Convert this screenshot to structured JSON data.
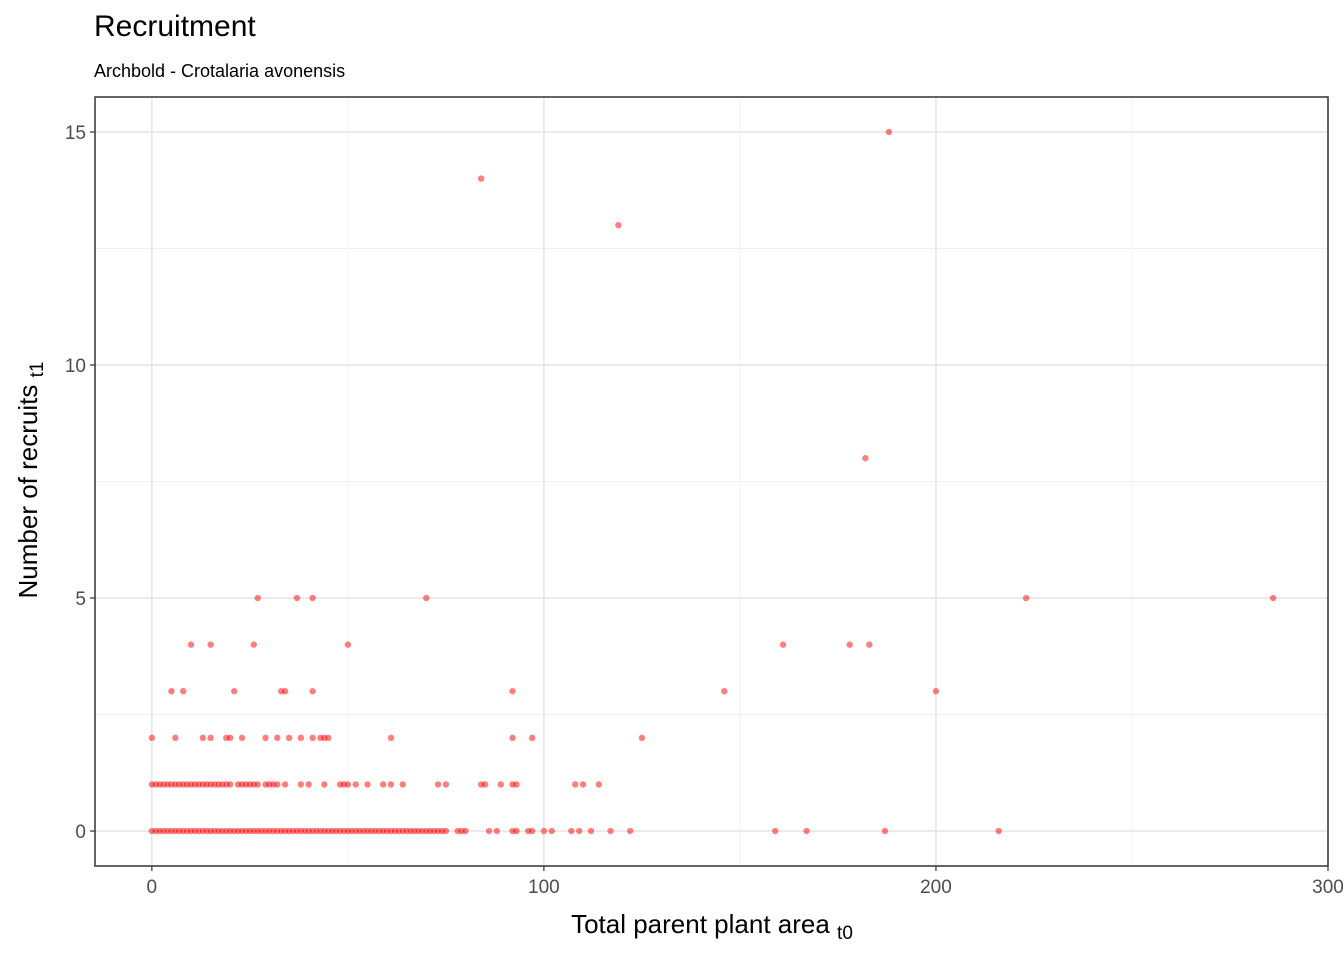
{
  "chart_data": {
    "type": "scatter",
    "title": "Recruitment",
    "subtitle": "Archbold - Crotalaria avonensis",
    "xlabel": "Total parent plant area",
    "xlabel_sub": "t0",
    "ylabel": "Number of recruits",
    "ylabel_sub": "t1",
    "xlim": [
      -14.5,
      300
    ],
    "ylim": [
      -0.75,
      15.75
    ],
    "x_ticks": [
      0,
      100,
      200,
      300
    ],
    "y_ticks": [
      0,
      5,
      10,
      15
    ],
    "x_tick_labels": [
      "0",
      "100",
      "200",
      "300"
    ],
    "y_tick_labels": [
      "0",
      "5",
      "10",
      "15"
    ],
    "grid": true,
    "point_color": "#ff0000",
    "points": [
      [
        0,
        0
      ],
      [
        1,
        0
      ],
      [
        2,
        0
      ],
      [
        3,
        0
      ],
      [
        4,
        0
      ],
      [
        5,
        0
      ],
      [
        6,
        0
      ],
      [
        7,
        0
      ],
      [
        8,
        0
      ],
      [
        9,
        0
      ],
      [
        10,
        0
      ],
      [
        11,
        0
      ],
      [
        12,
        0
      ],
      [
        13,
        0
      ],
      [
        14,
        0
      ],
      [
        15,
        0
      ],
      [
        16,
        0
      ],
      [
        17,
        0
      ],
      [
        18,
        0
      ],
      [
        19,
        0
      ],
      [
        20,
        0
      ],
      [
        21,
        0
      ],
      [
        22,
        0
      ],
      [
        23,
        0
      ],
      [
        24,
        0
      ],
      [
        25,
        0
      ],
      [
        26,
        0
      ],
      [
        27,
        0
      ],
      [
        28,
        0
      ],
      [
        29,
        0
      ],
      [
        30,
        0
      ],
      [
        31,
        0
      ],
      [
        32,
        0
      ],
      [
        33,
        0
      ],
      [
        34,
        0
      ],
      [
        35,
        0
      ],
      [
        36,
        0
      ],
      [
        37,
        0
      ],
      [
        38,
        0
      ],
      [
        39,
        0
      ],
      [
        40,
        0
      ],
      [
        41,
        0
      ],
      [
        42,
        0
      ],
      [
        43,
        0
      ],
      [
        44,
        0
      ],
      [
        45,
        0
      ],
      [
        46,
        0
      ],
      [
        47,
        0
      ],
      [
        48,
        0
      ],
      [
        49,
        0
      ],
      [
        50,
        0
      ],
      [
        51,
        0
      ],
      [
        52,
        0
      ],
      [
        53,
        0
      ],
      [
        54,
        0
      ],
      [
        55,
        0
      ],
      [
        56,
        0
      ],
      [
        57,
        0
      ],
      [
        58,
        0
      ],
      [
        59,
        0
      ],
      [
        60,
        0
      ],
      [
        61,
        0
      ],
      [
        62,
        0
      ],
      [
        63,
        0
      ],
      [
        64,
        0
      ],
      [
        65,
        0
      ],
      [
        66,
        0
      ],
      [
        67,
        0
      ],
      [
        68,
        0
      ],
      [
        69,
        0
      ],
      [
        70,
        0
      ],
      [
        71,
        0
      ],
      [
        72,
        0
      ],
      [
        73,
        0
      ],
      [
        74,
        0
      ],
      [
        75,
        0
      ],
      [
        78,
        0
      ],
      [
        79,
        0
      ],
      [
        80,
        0
      ],
      [
        86,
        0
      ],
      [
        88,
        0
      ],
      [
        92,
        0
      ],
      [
        93,
        0
      ],
      [
        96,
        0
      ],
      [
        97,
        0
      ],
      [
        100,
        0
      ],
      [
        102,
        0
      ],
      [
        107,
        0
      ],
      [
        109,
        0
      ],
      [
        112,
        0
      ],
      [
        117,
        0
      ],
      [
        122,
        0
      ],
      [
        159,
        0
      ],
      [
        167,
        0
      ],
      [
        187,
        0
      ],
      [
        216,
        0
      ],
      [
        0,
        1
      ],
      [
        1,
        1
      ],
      [
        2,
        1
      ],
      [
        3,
        1
      ],
      [
        4,
        1
      ],
      [
        5,
        1
      ],
      [
        6,
        1
      ],
      [
        7,
        1
      ],
      [
        8,
        1
      ],
      [
        9,
        1
      ],
      [
        10,
        1
      ],
      [
        11,
        1
      ],
      [
        12,
        1
      ],
      [
        13,
        1
      ],
      [
        14,
        1
      ],
      [
        15,
        1
      ],
      [
        16,
        1
      ],
      [
        17,
        1
      ],
      [
        18,
        1
      ],
      [
        19,
        1
      ],
      [
        20,
        1
      ],
      [
        22,
        1
      ],
      [
        23,
        1
      ],
      [
        24,
        1
      ],
      [
        25,
        1
      ],
      [
        26,
        1
      ],
      [
        27,
        1
      ],
      [
        29,
        1
      ],
      [
        30,
        1
      ],
      [
        31,
        1
      ],
      [
        32,
        1
      ],
      [
        34,
        1
      ],
      [
        38,
        1
      ],
      [
        40,
        1
      ],
      [
        44,
        1
      ],
      [
        48,
        1
      ],
      [
        49,
        1
      ],
      [
        50,
        1
      ],
      [
        52,
        1
      ],
      [
        55,
        1
      ],
      [
        59,
        1
      ],
      [
        61,
        1
      ],
      [
        64,
        1
      ],
      [
        73,
        1
      ],
      [
        75,
        1
      ],
      [
        84,
        1
      ],
      [
        85,
        1
      ],
      [
        89,
        1
      ],
      [
        92,
        1
      ],
      [
        93,
        1
      ],
      [
        108,
        1
      ],
      [
        110,
        1
      ],
      [
        114,
        1
      ],
      [
        0,
        2
      ],
      [
        6,
        2
      ],
      [
        13,
        2
      ],
      [
        15,
        2
      ],
      [
        19,
        2
      ],
      [
        20,
        2
      ],
      [
        23,
        2
      ],
      [
        29,
        2
      ],
      [
        32,
        2
      ],
      [
        35,
        2
      ],
      [
        38,
        2
      ],
      [
        41,
        2
      ],
      [
        43,
        2
      ],
      [
        44,
        2
      ],
      [
        45,
        2
      ],
      [
        61,
        2
      ],
      [
        92,
        2
      ],
      [
        97,
        2
      ],
      [
        125,
        2
      ],
      [
        5,
        3
      ],
      [
        8,
        3
      ],
      [
        21,
        3
      ],
      [
        33,
        3
      ],
      [
        34,
        3
      ],
      [
        41,
        3
      ],
      [
        92,
        3
      ],
      [
        146,
        3
      ],
      [
        200,
        3
      ],
      [
        10,
        4
      ],
      [
        15,
        4
      ],
      [
        26,
        4
      ],
      [
        50,
        4
      ],
      [
        161,
        4
      ],
      [
        178,
        4
      ],
      [
        183,
        4
      ],
      [
        27,
        5
      ],
      [
        37,
        5
      ],
      [
        41,
        5
      ],
      [
        70,
        5
      ],
      [
        223,
        5
      ],
      [
        286,
        5
      ],
      [
        182,
        8
      ],
      [
        119,
        13
      ],
      [
        84,
        14
      ],
      [
        188,
        15
      ]
    ]
  }
}
